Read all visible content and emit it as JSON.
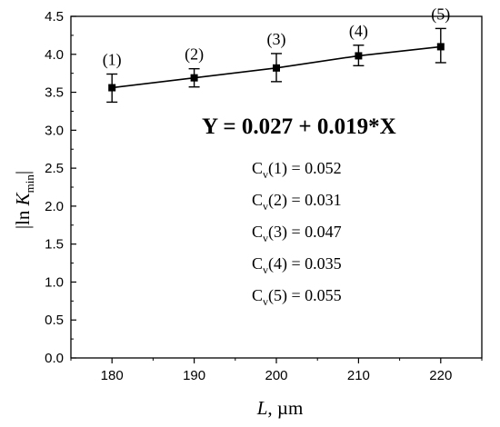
{
  "chart_data": {
    "type": "scatter",
    "title": "",
    "xlabel": {
      "main": "L",
      "unit": ", µm"
    },
    "ylabel": {
      "prefix": "|ln ",
      "main": "K",
      "sub": "min",
      "suffix": "|"
    },
    "xlim": [
      175,
      225
    ],
    "ylim": [
      0.0,
      4.5
    ],
    "x_ticks": [
      180,
      190,
      200,
      210,
      220
    ],
    "y_ticks": [
      0.0,
      0.5,
      1.0,
      1.5,
      2.0,
      2.5,
      3.0,
      3.5,
      4.0,
      4.5
    ],
    "x_tick_labels": [
      "180",
      "190",
      "200",
      "210",
      "220"
    ],
    "y_tick_labels": [
      "0.0",
      "0.5",
      "1.0",
      "1.5",
      "2.0",
      "2.5",
      "3.0",
      "3.5",
      "4.0",
      "4.5"
    ],
    "points": [
      {
        "label": "(1)",
        "x": 180,
        "y": 3.56,
        "err_low": 0.19,
        "err_high": 0.18
      },
      {
        "label": "(2)",
        "x": 190,
        "y": 3.69,
        "err_low": 0.12,
        "err_high": 0.12
      },
      {
        "label": "(3)",
        "x": 200,
        "y": 3.82,
        "err_low": 0.18,
        "err_high": 0.19
      },
      {
        "label": "(4)",
        "x": 210,
        "y": 3.98,
        "err_low": 0.13,
        "err_high": 0.14
      },
      {
        "label": "(5)",
        "x": 220,
        "y": 4.1,
        "err_low": 0.21,
        "err_high": 0.24
      }
    ],
    "fit": {
      "intercept": 0.027,
      "slope": 0.019
    },
    "equation": "Y = 0.027 + 0.019*X",
    "cv": [
      {
        "base": "C",
        "sub": "v",
        "text": "(1) = 0.052"
      },
      {
        "base": "C",
        "sub": "v",
        "text": "(2) = 0.031"
      },
      {
        "base": "C",
        "sub": "v",
        "text": "(3) = 0.047"
      },
      {
        "base": "C",
        "sub": "v",
        "text": "(4) = 0.035"
      },
      {
        "base": "C",
        "sub": "v",
        "text": "(5) = 0.055"
      }
    ],
    "colors": {
      "marker": "#000000",
      "line": "#000000",
      "axis": "#000000",
      "background": "#ffffff"
    }
  }
}
